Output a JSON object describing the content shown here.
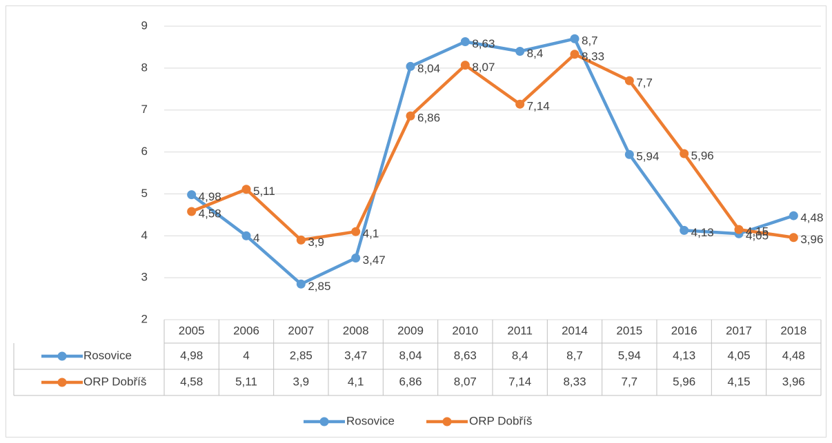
{
  "chart_data": {
    "type": "line",
    "categories": [
      "2005",
      "2006",
      "2007",
      "2008",
      "2009",
      "2010",
      "2011",
      "2014",
      "2015",
      "2016",
      "2017",
      "2018"
    ],
    "series": [
      {
        "name": "Rosovice",
        "color": "#5b9bd5",
        "values": [
          4.98,
          4,
          2.85,
          3.47,
          8.04,
          8.63,
          8.4,
          8.7,
          5.94,
          4.13,
          4.05,
          4.48
        ],
        "value_labels": [
          "4,98",
          "4",
          "2,85",
          "3,47",
          "8,04",
          "8,63",
          "8,4",
          "8,7",
          "5,94",
          "4,13",
          "4,05",
          "4,48"
        ]
      },
      {
        "name": "ORP Dobříš",
        "color": "#ed7d31",
        "values": [
          4.58,
          5.11,
          3.9,
          4.1,
          6.86,
          8.07,
          7.14,
          8.33,
          7.7,
          5.96,
          4.15,
          3.96
        ],
        "value_labels": [
          "4,58",
          "5,11",
          "3,9",
          "4,1",
          "6,86",
          "8,07",
          "7,14",
          "8,33",
          "7,7",
          "5,96",
          "4,15",
          "3,96"
        ]
      }
    ],
    "ylim": [
      2,
      9
    ],
    "yticks": [
      2,
      3,
      4,
      5,
      6,
      7,
      8,
      9
    ],
    "grid": true,
    "legend": "bottom"
  }
}
